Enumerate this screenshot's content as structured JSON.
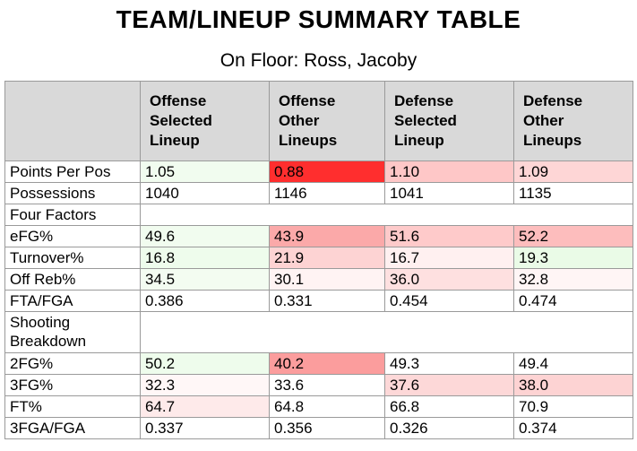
{
  "title": "TEAM/LINEUP SUMMARY TABLE",
  "subtitle": "On Floor: Ross, Jacoby",
  "columns": [
    {
      "lines": [
        "Offense",
        "Selected",
        "Lineup"
      ]
    },
    {
      "lines": [
        "Offense",
        "Other",
        "Lineups"
      ]
    },
    {
      "lines": [
        "Defense",
        "Selected",
        "Lineup"
      ]
    },
    {
      "lines": [
        "Defense",
        "Other",
        "Lineups"
      ]
    }
  ],
  "rows": [
    {
      "label": "Points Per Pos",
      "section": false,
      "cells": [
        {
          "value": "1.05",
          "color": "#f1fcef"
        },
        {
          "value": "0.88",
          "color": "#ff2e2e"
        },
        {
          "value": "1.10",
          "color": "#fec7c7"
        },
        {
          "value": "1.09",
          "color": "#fed6d6"
        }
      ]
    },
    {
      "label": "Possessions",
      "section": false,
      "cells": [
        {
          "value": "1040",
          "color": "#ffffff"
        },
        {
          "value": "1146",
          "color": "#ffffff"
        },
        {
          "value": "1041",
          "color": "#ffffff"
        },
        {
          "value": "1135",
          "color": "#ffffff"
        }
      ]
    },
    {
      "label": "Four Factors",
      "section": true,
      "cells": []
    },
    {
      "label": "eFG%",
      "section": false,
      "cells": [
        {
          "value": "49.6",
          "color": "#f1fcef"
        },
        {
          "value": "43.9",
          "color": "#fba9a9"
        },
        {
          "value": "51.6",
          "color": "#fecaca"
        },
        {
          "value": "52.2",
          "color": "#fdbdbd"
        }
      ]
    },
    {
      "label": "Turnover%",
      "section": false,
      "cells": [
        {
          "value": "16.8",
          "color": "#eefcec"
        },
        {
          "value": "21.9",
          "color": "#fdd3d3"
        },
        {
          "value": "16.7",
          "color": "#fff0f0"
        },
        {
          "value": "19.3",
          "color": "#eafbe7"
        }
      ]
    },
    {
      "label": "Off Reb%",
      "section": false,
      "cells": [
        {
          "value": "34.5",
          "color": "#f3fcf1"
        },
        {
          "value": "30.1",
          "color": "#fff3f3"
        },
        {
          "value": "36.0",
          "color": "#fee0e0"
        },
        {
          "value": "32.8",
          "color": "#fff5f5"
        }
      ]
    },
    {
      "label": "FTA/FGA",
      "section": false,
      "cells": [
        {
          "value": "0.386",
          "color": "#ffffff"
        },
        {
          "value": "0.331",
          "color": "#ffffff"
        },
        {
          "value": "0.454",
          "color": "#ffffff"
        },
        {
          "value": "0.474",
          "color": "#ffffff"
        }
      ]
    },
    {
      "label": "Shooting Breakdown",
      "section": true,
      "two_line": true,
      "cells": []
    },
    {
      "label": "2FG%",
      "section": false,
      "cells": [
        {
          "value": "50.2",
          "color": "#eefcec"
        },
        {
          "value": "40.2",
          "color": "#fb9d9d"
        },
        {
          "value": "49.3",
          "color": "#ffffff"
        },
        {
          "value": "49.4",
          "color": "#ffffff"
        }
      ]
    },
    {
      "label": "3FG%",
      "section": false,
      "cells": [
        {
          "value": "32.3",
          "color": "#fff7f7"
        },
        {
          "value": "33.6",
          "color": "#ffffff"
        },
        {
          "value": "37.6",
          "color": "#fdd8d8"
        },
        {
          "value": "38.0",
          "color": "#fdd3d3"
        }
      ]
    },
    {
      "label": "FT%",
      "section": false,
      "cells": [
        {
          "value": "64.7",
          "color": "#feeaea"
        },
        {
          "value": "64.8",
          "color": "#ffffff"
        },
        {
          "value": "66.8",
          "color": "#ffffff"
        },
        {
          "value": "70.9",
          "color": "#ffffff"
        }
      ]
    },
    {
      "label": "3FGA/FGA",
      "section": false,
      "cells": [
        {
          "value": "0.337",
          "color": "#ffffff"
        },
        {
          "value": "0.356",
          "color": "#ffffff"
        },
        {
          "value": "0.326",
          "color": "#ffffff"
        },
        {
          "value": "0.374",
          "color": "#ffffff"
        }
      ]
    }
  ]
}
